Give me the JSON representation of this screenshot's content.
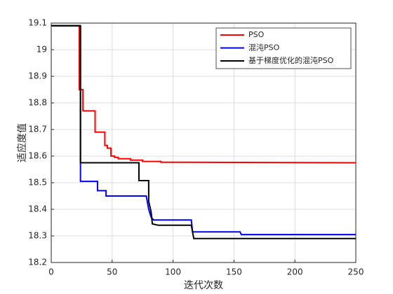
{
  "chart_data": {
    "type": "line",
    "x_label": "迭代次数",
    "y_label": "适应度值",
    "xlim": [
      0,
      250
    ],
    "xticks": [
      0,
      50,
      100,
      150,
      200,
      250
    ],
    "ylim": [
      18.2,
      19.1
    ],
    "yticks": [
      18.2,
      18.3,
      18.4,
      18.5,
      18.6,
      18.7,
      18.8,
      18.9,
      19,
      19.1
    ],
    "grid": true,
    "legend": "top-right",
    "series": [
      {
        "name": "PSO",
        "color": "#ff0000",
        "x": [
          0,
          23,
          23,
          26,
          26,
          36,
          36,
          44,
          44,
          46,
          46,
          49,
          49,
          52,
          52,
          55,
          55,
          65,
          65,
          75,
          75,
          90,
          90,
          250
        ],
        "values": [
          19.09,
          19.09,
          18.85,
          18.85,
          18.77,
          18.77,
          18.69,
          18.69,
          18.64,
          18.64,
          18.63,
          18.63,
          18.6,
          18.6,
          18.595,
          18.595,
          18.59,
          18.59,
          18.585,
          18.585,
          18.58,
          18.58,
          18.577,
          18.575
        ]
      },
      {
        "name": "混沌PSO",
        "color": "#0000ff",
        "x": [
          0,
          24,
          24,
          38,
          38,
          45,
          45,
          78,
          80,
          82,
          84,
          115,
          116,
          155,
          156,
          250
        ],
        "values": [
          19.09,
          19.09,
          18.505,
          18.505,
          18.47,
          18.47,
          18.45,
          18.45,
          18.4,
          18.37,
          18.36,
          18.36,
          18.315,
          18.315,
          18.305,
          18.305
        ]
      },
      {
        "name": "基于梯度优化的混沌PSO",
        "color": "#000000",
        "x": [
          0,
          24,
          24,
          72,
          72,
          80,
          80,
          82,
          83,
          88,
          115,
          117,
          250
        ],
        "values": [
          19.09,
          19.09,
          18.575,
          18.575,
          18.508,
          18.508,
          18.43,
          18.39,
          18.345,
          18.34,
          18.34,
          18.29,
          18.29
        ]
      }
    ]
  }
}
